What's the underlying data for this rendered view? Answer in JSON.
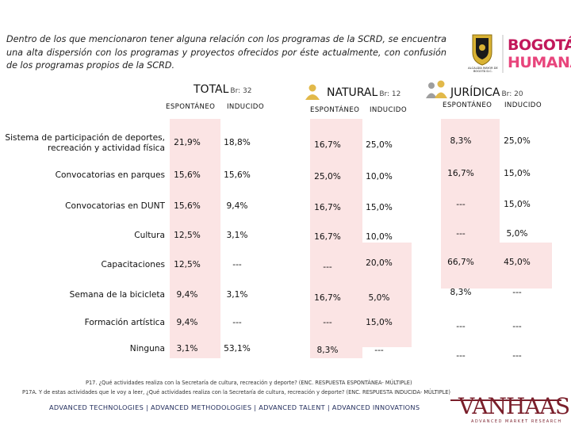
{
  "intro_text": "Dentro de los que mencionaron tener alguna relación con los programas de la SCRD, se encuentra una alta dispersión con los programas y proyectos ofrecidos por éste actualmente, con confusión de los programas propios de la SCRD.",
  "logo": {
    "shield_caption": "ALCALDÍA MAYOR DE BOGOTÁ D.C.",
    "brand_line1": "BOGOTÁ",
    "brand_line2": "HUMANA"
  },
  "groups": [
    {
      "title": "TOTAL",
      "base": "Br: 32",
      "sub1": "ESPONTÁNEO",
      "sub2": "INDUCIDO",
      "icon": "people-icon"
    },
    {
      "title": "NATURAL",
      "base": "Br: 12",
      "sub1": "ESPONTÁNEO",
      "sub2": "INDUCIDO",
      "icon": "person-icon"
    },
    {
      "title": "JURÍDICA",
      "base": "Br: 20",
      "sub1": "ESPONTÁNEO",
      "sub2": "INDUCIDO",
      "icon": "company-icon"
    }
  ],
  "rows": [
    {
      "label": "Sistema de participación de deportes, recreación y actividad física",
      "values": [
        "21,9%",
        "18,8%",
        "16,7%",
        "25,0%",
        "8,3%",
        "25,0%"
      ]
    },
    {
      "label": "Convocatorias en parques",
      "values": [
        "15,6%",
        "15,6%",
        "25,0%",
        "10,0%",
        "16,7%",
        "15,0%"
      ]
    },
    {
      "label": "Convocatorias en DUNT",
      "values": [
        "15,6%",
        "9,4%",
        "16,7%",
        "15,0%",
        "---",
        "15,0%"
      ]
    },
    {
      "label": "Cultura",
      "values": [
        "12,5%",
        "3,1%",
        "16,7%",
        "10,0%",
        "---",
        "5,0%"
      ]
    },
    {
      "label": "Capacitaciones",
      "values": [
        "12,5%",
        "---",
        "---",
        "20,0%",
        "66,7%",
        "45,0%"
      ]
    },
    {
      "label": "Semana de la bicicleta",
      "values": [
        "9,4%",
        "3,1%",
        "16,7%",
        "5,0%",
        "8,3%",
        "---"
      ]
    },
    {
      "label": "Formación artística",
      "values": [
        "9,4%",
        "---",
        "---",
        "15,0%",
        "---",
        "---"
      ]
    },
    {
      "label": "Ninguna",
      "values": [
        "3,1%",
        "53,1%",
        "8,3%",
        "---",
        "---",
        "---"
      ]
    }
  ],
  "footnotes": {
    "p17": "P17. ¿Qué actividades realiza con la Secretaría de cultura, recreación y deporte? (ENC. RESPUESTA ESPONTÁNEA- MÚLTIPLE)",
    "p17a": "P17A. Y de estas actividades que le voy a leer, ¿Qué actividades realiza con la Secretaría de cultura, recreación y deporte? (ENC. RESPUESTA INDUCIDA- MÚLTIPLE)"
  },
  "bottom_bar": "ADVANCED TECHNOLOGIES | ADVANCED METHODOLOGIES | ADVANCED TALENT | ADVANCED INNOVATIONS",
  "vanhaas": {
    "name": "VANHAAS",
    "tagline": "ADVANCED MARKET RESEARCH"
  }
}
